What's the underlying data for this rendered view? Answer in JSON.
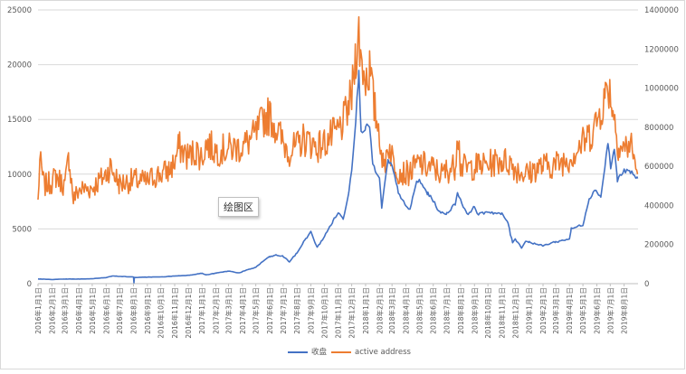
{
  "tooltip": "绘图区",
  "colors": {
    "close": "#4472c4",
    "addr": "#ed7d31",
    "grid": "#d9d9d9",
    "axis": "#bfbfbf"
  },
  "chart_data": {
    "type": "line",
    "x_start": "2016-01-01",
    "x_end": "2019-08-31",
    "x_tick_labels": [
      "2016年1月1日",
      "2016年2月1日",
      "2016年3月1日",
      "2016年4月1日",
      "2016年5月1日",
      "2016年6月1日",
      "2016年7月1日",
      "2016年8月1日",
      "2016年9月1日",
      "2016年10月1日",
      "2016年11月1日",
      "2016年12月1日",
      "2017年1月1日",
      "2017年2月1日",
      "2017年3月1日",
      "2017年4月1日",
      "2017年5月1日",
      "2017年6月1日",
      "2017年7月1日",
      "2017年8月1日",
      "2017年9月1日",
      "2017年10月1日",
      "2017年11月1日",
      "2017年12月1日",
      "2018年1月1日",
      "2018年2月1日",
      "2018年3月1日",
      "2018年4月1日",
      "2018年5月1日",
      "2018年6月1日",
      "2018年7月1日",
      "2018年8月1日",
      "2018年9月1日",
      "2018年10月1日",
      "2018年11月1日",
      "2018年12月1日",
      "2019年1月1日",
      "2019年2月1日",
      "2019年3月1日",
      "2019年4月1日",
      "2019年5月1日",
      "2019年6月1日",
      "2019年7月1日",
      "2019年8月1日"
    ],
    "y_left": {
      "min": 0,
      "max": 25000,
      "ticks": [
        "0",
        "5000",
        "10000",
        "15000",
        "20000",
        "25000"
      ]
    },
    "y_right": {
      "min": 0,
      "max": 1400000,
      "ticks": [
        "0",
        "200000",
        "400000",
        "600000",
        "800000",
        "1000000",
        "1200000",
        "1400000"
      ]
    },
    "grid": true,
    "legend_position": "bottom",
    "series": [
      {
        "name": "收盘",
        "axis": "left",
        "points": [
          [
            "2016-01-01",
            430
          ],
          [
            "2016-02-01",
            380
          ],
          [
            "2016-03-01",
            420
          ],
          [
            "2016-04-01",
            420
          ],
          [
            "2016-05-01",
            450
          ],
          [
            "2016-06-01",
            560
          ],
          [
            "2016-06-15",
            700
          ],
          [
            "2016-07-01",
            670
          ],
          [
            "2016-08-01",
            610
          ],
          [
            "2016-08-02",
            80
          ],
          [
            "2016-08-03",
            560
          ],
          [
            "2016-09-01",
            600
          ],
          [
            "2016-10-01",
            610
          ],
          [
            "2016-11-01",
            700
          ],
          [
            "2016-12-01",
            760
          ],
          [
            "2017-01-01",
            950
          ],
          [
            "2017-01-10",
            800
          ],
          [
            "2017-02-01",
            960
          ],
          [
            "2017-03-01",
            1150
          ],
          [
            "2017-03-25",
            980
          ],
          [
            "2017-04-01",
            1100
          ],
          [
            "2017-05-01",
            1500
          ],
          [
            "2017-05-25",
            2300
          ],
          [
            "2017-06-01",
            2450
          ],
          [
            "2017-06-15",
            2600
          ],
          [
            "2017-07-01",
            2500
          ],
          [
            "2017-07-15",
            2000
          ],
          [
            "2017-08-01",
            2800
          ],
          [
            "2017-08-20",
            4100
          ],
          [
            "2017-09-01",
            4700
          ],
          [
            "2017-09-15",
            3300
          ],
          [
            "2017-10-01",
            4300
          ],
          [
            "2017-10-20",
            5700
          ],
          [
            "2017-11-01",
            6500
          ],
          [
            "2017-11-12",
            5900
          ],
          [
            "2017-11-25",
            8500
          ],
          [
            "2017-12-01",
            10500
          ],
          [
            "2017-12-10",
            15000
          ],
          [
            "2017-12-17",
            19200
          ],
          [
            "2017-12-22",
            14000
          ],
          [
            "2018-01-01",
            14200
          ],
          [
            "2018-01-10",
            14500
          ],
          [
            "2018-01-17",
            10800
          ],
          [
            "2018-02-01",
            9500
          ],
          [
            "2018-02-06",
            7000
          ],
          [
            "2018-02-20",
            11200
          ],
          [
            "2018-03-01",
            10700
          ],
          [
            "2018-03-15",
            8400
          ],
          [
            "2018-04-01",
            7000
          ],
          [
            "2018-04-10",
            6800
          ],
          [
            "2018-04-25",
            9300
          ],
          [
            "2018-05-01",
            9400
          ],
          [
            "2018-05-20",
            8200
          ],
          [
            "2018-06-01",
            7600
          ],
          [
            "2018-06-15",
            6500
          ],
          [
            "2018-07-01",
            6400
          ],
          [
            "2018-07-20",
            7300
          ],
          [
            "2018-07-25",
            8300
          ],
          [
            "2018-08-01",
            7700
          ],
          [
            "2018-08-15",
            6300
          ],
          [
            "2018-09-01",
            7000
          ],
          [
            "2018-09-10",
            6300
          ],
          [
            "2018-10-01",
            6600
          ],
          [
            "2018-10-15",
            6450
          ],
          [
            "2018-11-01",
            6350
          ],
          [
            "2018-11-15",
            5600
          ],
          [
            "2018-11-20",
            4500
          ],
          [
            "2018-11-25",
            3800
          ],
          [
            "2018-12-01",
            4100
          ],
          [
            "2018-12-15",
            3300
          ],
          [
            "2018-12-25",
            3900
          ],
          [
            "2019-01-01",
            3800
          ],
          [
            "2019-02-01",
            3450
          ],
          [
            "2019-02-25",
            3800
          ],
          [
            "2019-03-01",
            3800
          ],
          [
            "2019-04-01",
            4100
          ],
          [
            "2019-04-05",
            5000
          ],
          [
            "2019-05-01",
            5400
          ],
          [
            "2019-05-15",
            7800
          ],
          [
            "2019-05-30",
            8600
          ],
          [
            "2019-06-10",
            7900
          ],
          [
            "2019-06-26",
            12900
          ],
          [
            "2019-07-02",
            10600
          ],
          [
            "2019-07-10",
            12300
          ],
          [
            "2019-07-17",
            9500
          ],
          [
            "2019-08-01",
            10300
          ],
          [
            "2019-08-15",
            10200
          ],
          [
            "2019-08-31",
            9600
          ]
        ]
      },
      {
        "name": "active address",
        "axis": "right",
        "points": [
          [
            "2016-01-01",
            420000
          ],
          [
            "2016-01-05",
            630000
          ],
          [
            "2016-01-15",
            500000
          ],
          [
            "2016-02-01",
            520000
          ],
          [
            "2016-02-10",
            550000
          ],
          [
            "2016-03-01",
            500000
          ],
          [
            "2016-03-10",
            650000
          ],
          [
            "2016-03-20",
            430000
          ],
          [
            "2016-04-01",
            480000
          ],
          [
            "2016-05-01",
            490000
          ],
          [
            "2016-06-01",
            560000
          ],
          [
            "2016-06-10",
            600000
          ],
          [
            "2016-07-01",
            510000
          ],
          [
            "2016-08-01",
            530000
          ],
          [
            "2016-09-01",
            520000
          ],
          [
            "2016-09-15",
            550000
          ],
          [
            "2016-10-01",
            560000
          ],
          [
            "2016-10-20",
            580000
          ],
          [
            "2016-11-01",
            620000
          ],
          [
            "2016-11-10",
            700000
          ],
          [
            "2016-12-01",
            650000
          ],
          [
            "2016-12-20",
            680000
          ],
          [
            "2017-01-01",
            640000
          ],
          [
            "2017-01-10",
            720000
          ],
          [
            "2017-02-01",
            680000
          ],
          [
            "2017-03-01",
            690000
          ],
          [
            "2017-04-01",
            700000
          ],
          [
            "2017-05-01",
            760000
          ],
          [
            "2017-05-20",
            850000
          ],
          [
            "2017-06-01",
            860000
          ],
          [
            "2017-06-15",
            800000
          ],
          [
            "2017-07-01",
            720000
          ],
          [
            "2017-07-15",
            680000
          ],
          [
            "2017-08-01",
            700000
          ],
          [
            "2017-08-15",
            740000
          ],
          [
            "2017-09-01",
            720000
          ],
          [
            "2017-09-15",
            700000
          ],
          [
            "2017-10-01",
            720000
          ],
          [
            "2017-10-20",
            760000
          ],
          [
            "2017-11-01",
            780000
          ],
          [
            "2017-11-15",
            840000
          ],
          [
            "2017-12-01",
            960000
          ],
          [
            "2017-12-10",
            1180000
          ],
          [
            "2017-12-17",
            1270000
          ],
          [
            "2017-12-22",
            1150000
          ],
          [
            "2018-01-01",
            1050000
          ],
          [
            "2018-01-10",
            1100000
          ],
          [
            "2018-01-20",
            900000
          ],
          [
            "2018-02-01",
            780000
          ],
          [
            "2018-02-10",
            580000
          ],
          [
            "2018-02-20",
            720000
          ],
          [
            "2018-03-01",
            650000
          ],
          [
            "2018-03-15",
            580000
          ],
          [
            "2018-04-01",
            560000
          ],
          [
            "2018-04-15",
            580000
          ],
          [
            "2018-05-01",
            620000
          ],
          [
            "2018-05-15",
            600000
          ],
          [
            "2018-06-01",
            590000
          ],
          [
            "2018-06-20",
            560000
          ],
          [
            "2018-07-01",
            580000
          ],
          [
            "2018-07-20",
            600000
          ],
          [
            "2018-07-25",
            810000
          ],
          [
            "2018-08-01",
            600000
          ],
          [
            "2018-08-15",
            590000
          ],
          [
            "2018-09-01",
            600000
          ],
          [
            "2018-10-01",
            610000
          ],
          [
            "2018-10-15",
            620000
          ],
          [
            "2018-11-01",
            630000
          ],
          [
            "2018-11-20",
            620000
          ],
          [
            "2018-12-01",
            590000
          ],
          [
            "2018-12-15",
            570000
          ],
          [
            "2019-01-01",
            560000
          ],
          [
            "2019-01-15",
            590000
          ],
          [
            "2019-02-01",
            600000
          ],
          [
            "2019-03-01",
            610000
          ],
          [
            "2019-04-01",
            640000
          ],
          [
            "2019-04-15",
            680000
          ],
          [
            "2019-05-01",
            720000
          ],
          [
            "2019-05-20",
            770000
          ],
          [
            "2019-06-01",
            830000
          ],
          [
            "2019-06-20",
            960000
          ],
          [
            "2019-06-26",
            1030000
          ],
          [
            "2019-07-05",
            920000
          ],
          [
            "2019-07-20",
            700000
          ],
          [
            "2019-08-01",
            690000
          ],
          [
            "2019-08-15",
            720000
          ],
          [
            "2019-08-31",
            560000
          ]
        ]
      }
    ]
  }
}
